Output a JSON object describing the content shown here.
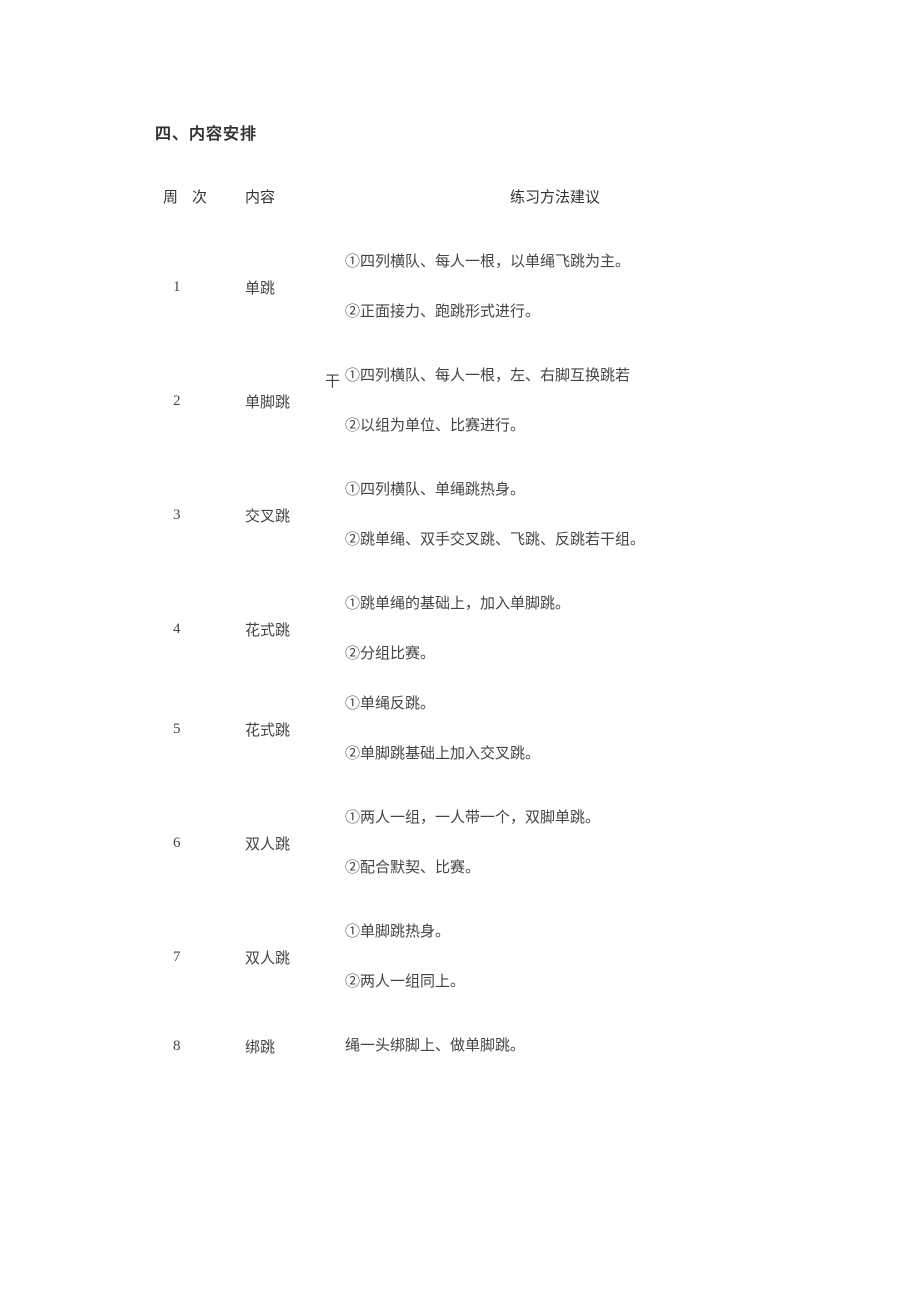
{
  "heading": "四、内容安排",
  "columns": {
    "week": "周次",
    "content": "内容",
    "method": "练习方法建议"
  },
  "rows": [
    {
      "week": "1",
      "content": "单跳",
      "methods": [
        "①四列横队、每人一根，以单绳飞跳为主。",
        "②正面接力、跑跳形式进行。"
      ]
    },
    {
      "week": "2",
      "content": "单脚跳",
      "overflow": "干",
      "methods": [
        "①四列横队、每人一根，左、右脚互换跳若",
        "②以组为单位、比赛进行。"
      ]
    },
    {
      "week": "3",
      "content": "交叉跳",
      "methods": [
        "①四列横队、单绳跳热身。",
        "②跳单绳、双手交叉跳、飞跳、反跳若干组。"
      ]
    },
    {
      "week": "4",
      "content": "花式跳",
      "methods": [
        "①跳单绳的基础上，加入单脚跳。",
        "②分组比赛。"
      ]
    },
    {
      "week": "5",
      "content": "花式跳",
      "methods": [
        "①单绳反跳。",
        "②单脚跳基础上加入交叉跳。"
      ]
    },
    {
      "week": "6",
      "content": "双人跳",
      "methods": [
        "①两人一组，一人带一个，双脚单跳。",
        "②配合默契、比赛。"
      ]
    },
    {
      "week": "7",
      "content": "双人跳",
      "methods": [
        "①单脚跳热身。",
        "②两人一组同上。"
      ]
    },
    {
      "week": "8",
      "content": "绑跳",
      "methods": [
        "绳一头绑脚上、做单脚跳。"
      ]
    }
  ],
  "style": {
    "background_color": "#ffffff",
    "text_color": "#333333",
    "body_text_color": "#444444",
    "heading_fontsize": 16,
    "body_fontsize": 15,
    "font_family": "SimSun"
  }
}
